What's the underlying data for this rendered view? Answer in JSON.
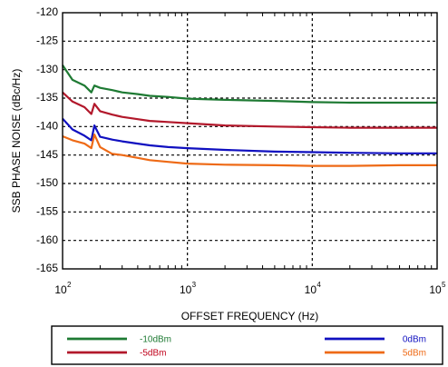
{
  "chart_data": {
    "type": "line",
    "xscale": "log",
    "xlim": [
      100,
      100000
    ],
    "ylim": [
      -165,
      -120
    ],
    "ystep": 5,
    "grid": true,
    "ylabel": "SSB PHASE NOISE (dBc/Hz)",
    "xlabel": "OFFSET FREQUENCY (Hz)",
    "yticks": [
      "-120",
      "-125",
      "-130",
      "-135",
      "-140",
      "-145",
      "-150",
      "-155",
      "-160",
      "-165"
    ],
    "xticks": [
      {
        "value": 100,
        "base": "10",
        "exp": "2"
      },
      {
        "value": 1000,
        "base": "10",
        "exp": "3"
      },
      {
        "value": 10000,
        "base": "10",
        "exp": "4"
      },
      {
        "value": 100000,
        "base": "10",
        "exp": "5"
      }
    ],
    "legend_position": "bottom",
    "series": [
      {
        "name": "-10dBm",
        "color": "#1e7a33",
        "legend_color": "#1e7a33",
        "x": [
          100,
          120,
          150,
          170,
          180,
          200,
          250,
          300,
          400,
          500,
          700,
          1000,
          2000,
          5000,
          10000,
          20000,
          50000,
          100000
        ],
        "y": [
          -129.2,
          -131.8,
          -132.8,
          -134.0,
          -132.8,
          -133.2,
          -133.6,
          -134.0,
          -134.3,
          -134.6,
          -134.8,
          -135.1,
          -135.3,
          -135.5,
          -135.7,
          -135.8,
          -135.8,
          -135.8
        ]
      },
      {
        "name": "-5dBm",
        "color": "#b2182b",
        "legend_color": "#c0001a",
        "x": [
          100,
          120,
          150,
          170,
          180,
          200,
          250,
          300,
          400,
          500,
          700,
          1000,
          2000,
          5000,
          10000,
          20000,
          50000,
          100000
        ],
        "y": [
          -134.0,
          -135.6,
          -136.6,
          -137.8,
          -136.0,
          -137.3,
          -137.9,
          -138.3,
          -138.7,
          -139.0,
          -139.2,
          -139.4,
          -139.8,
          -140.0,
          -140.1,
          -140.2,
          -140.2,
          -140.2
        ]
      },
      {
        "name": "0dBm",
        "color": "#1010c0",
        "legend_color": "#1010c0",
        "x": [
          100,
          120,
          150,
          170,
          180,
          200,
          250,
          300,
          400,
          500,
          700,
          1000,
          2000,
          5000,
          10000,
          20000,
          50000,
          100000
        ],
        "y": [
          -138.6,
          -140.5,
          -141.6,
          -142.4,
          -139.8,
          -141.8,
          -142.3,
          -142.6,
          -143.0,
          -143.3,
          -143.6,
          -143.8,
          -144.1,
          -144.4,
          -144.5,
          -144.6,
          -144.7,
          -144.7
        ]
      },
      {
        "name": "5dBm",
        "color": "#ee6a16",
        "legend_color": "#ee6a16",
        "x": [
          100,
          120,
          150,
          170,
          180,
          200,
          250,
          300,
          400,
          500,
          700,
          1000,
          2000,
          5000,
          10000,
          20000,
          50000,
          100000
        ],
        "y": [
          -141.7,
          -142.4,
          -143.0,
          -143.8,
          -141.4,
          -143.6,
          -144.8,
          -145.0,
          -145.5,
          -145.9,
          -146.2,
          -146.5,
          -146.7,
          -146.8,
          -146.9,
          -146.9,
          -146.8,
          -146.8
        ]
      }
    ]
  }
}
